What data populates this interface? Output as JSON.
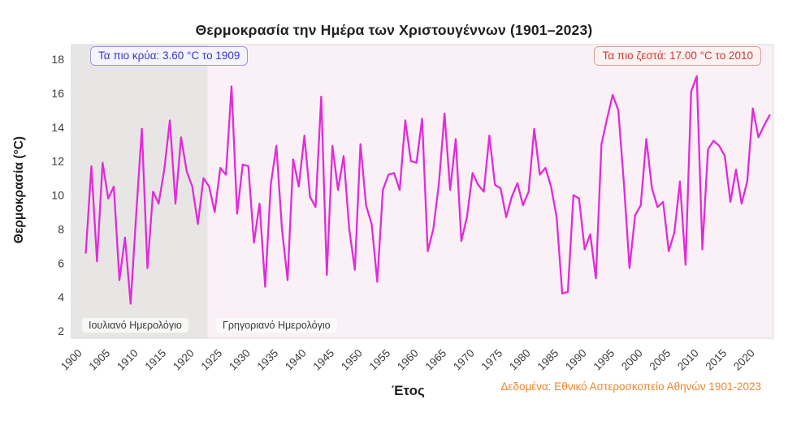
{
  "title": "Θερμοκρασία την Ημέρα των Χριστουγέννων (1901–2023)",
  "annotations": {
    "coldest": {
      "label": "Τα πιο κρύα: 3.60 °C το 1909",
      "text_color": "#3a35c8",
      "border_color": "#9a94dd",
      "background": "#f5f4fd"
    },
    "warmest": {
      "label": "Τα πιο ζεστά: 17.00 °C το 2010",
      "text_color": "#cd3833",
      "border_color": "#dc9a94",
      "background": "#fdf2f1"
    }
  },
  "axes": {
    "ylabel": "Θερμοκρασία (°C)",
    "xlabel": "Έτος",
    "yticks": [
      "2",
      "4",
      "6",
      "8",
      "10",
      "12",
      "14",
      "16",
      "18"
    ],
    "xticks": [
      "1900",
      "1905",
      "1910",
      "1915",
      "1920",
      "1925",
      "1930",
      "1935",
      "1940",
      "1945",
      "1950",
      "1955",
      "1960",
      "1965",
      "1970",
      "1975",
      "1980",
      "1985",
      "1990",
      "1995",
      "2000",
      "2005",
      "2010",
      "2015",
      "2020"
    ]
  },
  "regions": {
    "julian_label": "Ιουλιανό Ημερολόγιο",
    "gregorian_label": "Γρηγοριανό Ημερολόγιο",
    "julian_start_year": 1901,
    "julian_end_year": 1923.7
  },
  "attribution": "Δεδομένα: Εθνικό Αστεροσκοπείο Αθηνών 1901-2023",
  "colors": {
    "line": "#e22bd8",
    "plot_background": "#faf1f6",
    "julian_band": "#e8e6e5",
    "plot_border": "#ded7dc",
    "tick_text": "#3c3c3c",
    "title_text": "#1f1f1f",
    "attribution_text": "#ee8630"
  },
  "chart_data": {
    "type": "line",
    "title": "Θερμοκρασία την Ημέρα των Χριστουγέννων (1901–2023)",
    "xlabel": "Έτος",
    "ylabel": "Θερμοκρασία (°C)",
    "ylim": [
      1.5,
      18.9
    ],
    "xlim": [
      1899.5,
      2024.5
    ],
    "grid": false,
    "legend": false,
    "min_point": {
      "year": 1909,
      "value": 3.6
    },
    "max_point": {
      "year": 2010,
      "value": 17.0
    },
    "years": [
      1901,
      1902,
      1903,
      1904,
      1905,
      1906,
      1907,
      1908,
      1909,
      1910,
      1911,
      1912,
      1913,
      1914,
      1915,
      1916,
      1917,
      1918,
      1919,
      1920,
      1921,
      1922,
      1923,
      1924,
      1925,
      1926,
      1927,
      1928,
      1929,
      1930,
      1931,
      1932,
      1933,
      1934,
      1935,
      1936,
      1937,
      1938,
      1939,
      1940,
      1941,
      1942,
      1943,
      1944,
      1945,
      1946,
      1947,
      1948,
      1949,
      1950,
      1951,
      1952,
      1953,
      1954,
      1955,
      1956,
      1957,
      1958,
      1959,
      1960,
      1961,
      1962,
      1963,
      1964,
      1965,
      1966,
      1967,
      1968,
      1969,
      1970,
      1971,
      1972,
      1973,
      1974,
      1975,
      1976,
      1977,
      1978,
      1979,
      1980,
      1981,
      1982,
      1983,
      1984,
      1985,
      1986,
      1987,
      1988,
      1989,
      1990,
      1991,
      1992,
      1993,
      1994,
      1995,
      1996,
      1997,
      1998,
      1999,
      2000,
      2001,
      2002,
      2003,
      2004,
      2005,
      2006,
      2007,
      2008,
      2009,
      2010,
      2011,
      2012,
      2013,
      2014,
      2015,
      2016,
      2017,
      2018,
      2019,
      2020,
      2021,
      2022,
      2023
    ],
    "values": [
      6.6,
      11.7,
      6.1,
      11.9,
      9.8,
      10.5,
      5.0,
      7.5,
      3.6,
      8.9,
      13.9,
      5.7,
      10.2,
      9.5,
      11.5,
      14.4,
      9.5,
      13.4,
      11.4,
      10.5,
      8.3,
      11.0,
      10.5,
      9.0,
      11.6,
      11.2,
      16.4,
      8.9,
      11.8,
      11.7,
      7.2,
      9.5,
      4.6,
      10.6,
      12.9,
      8.0,
      5.0,
      12.1,
      10.5,
      13.5,
      9.9,
      9.3,
      15.8,
      5.3,
      12.9,
      10.3,
      12.3,
      8.0,
      5.6,
      13.0,
      9.4,
      8.3,
      4.9,
      10.3,
      11.2,
      11.3,
      10.3,
      14.4,
      12.0,
      11.9,
      14.5,
      6.7,
      8.0,
      10.7,
      14.8,
      10.3,
      13.3,
      7.3,
      8.7,
      11.3,
      10.6,
      10.2,
      13.5,
      10.6,
      10.4,
      8.7,
      9.9,
      10.7,
      9.4,
      10.2,
      13.9,
      11.2,
      11.6,
      10.5,
      8.7,
      4.2,
      4.3,
      10.0,
      9.8,
      6.8,
      7.7,
      5.1,
      13.0,
      14.5,
      15.9,
      15.0,
      10.7,
      5.7,
      8.8,
      9.4,
      13.3,
      10.4,
      9.3,
      9.6,
      6.7,
      7.8,
      10.8,
      5.9,
      16.1,
      17.0,
      6.8,
      12.7,
      13.2,
      12.9,
      12.3,
      9.6,
      11.5,
      9.5,
      10.8,
      15.1,
      13.4,
      14.1,
      14.7
    ]
  }
}
